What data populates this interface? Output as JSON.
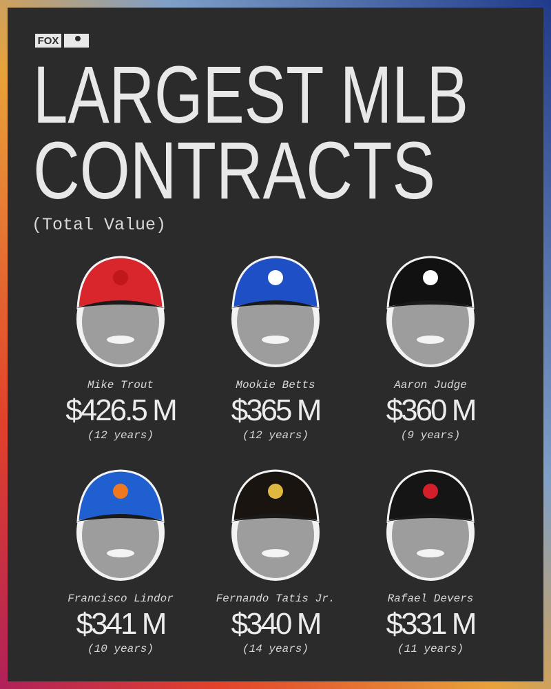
{
  "header": {
    "brand": "FOX",
    "title_lines": [
      "LARGEST MLB",
      "CONTRACTS"
    ],
    "subtitle": "(Total Value)"
  },
  "players": [
    {
      "name": "Mike Trout",
      "amount": "$426.5 M",
      "years": "(12 years)"
    },
    {
      "name": "Mookie Betts",
      "amount": "$365 M",
      "years": "(12 years)"
    },
    {
      "name": "Aaron Judge",
      "amount": "$360 M",
      "years": "(9 years)"
    },
    {
      "name": "Francisco Lindor",
      "amount": "$341 M",
      "years": "(10 years)"
    },
    {
      "name": "Fernando Tatis Jr.",
      "amount": "$340 M",
      "years": "(14 years)"
    },
    {
      "name": "Rafael Devers",
      "amount": "$331 M",
      "years": "(11 years)"
    }
  ]
}
